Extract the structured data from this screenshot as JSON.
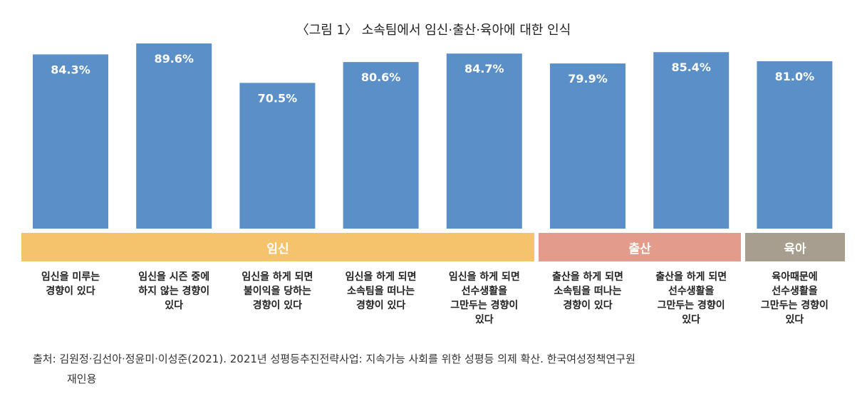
{
  "title": "〈그림 1〉 소속팀에서 임신·출산·육아에 대한 인식",
  "chart_data": {
    "type": "bar",
    "categories": [
      "임신을 미루는\n경향이 있다",
      "임신을 시즌 중에\n하지 않는 경향이\n있다",
      "임신을 하게 되면\n불이익을 당하는\n경향이 있다",
      "임신을 하게 되면\n소속팀을 떠나는\n경향이 있다",
      "임신을 하게 되면\n선수생활을\n그만두는 경향이\n있다",
      "출산을 하게 되면\n소속팀을 떠나는\n경향이 있다",
      "출산을 하게 되면\n선수생활을\n그만두는 경향이\n있다",
      "육아때문에\n선수생활을\n그만두는 경향이\n있다"
    ],
    "values": [
      84.3,
      89.6,
      70.5,
      80.6,
      84.7,
      79.9,
      85.4,
      81.0
    ],
    "value_labels": [
      "84.3%",
      "89.6%",
      "70.5%",
      "80.6%",
      "84.7%",
      "79.9%",
      "85.4%",
      "81.0%"
    ],
    "bar_color": "#5b8fc7",
    "groups": [
      {
        "label": "임신",
        "count": 5,
        "color": "#f5c36b"
      },
      {
        "label": "출산",
        "count": 2,
        "color": "#e39c8b"
      },
      {
        "label": "육아",
        "count": 1,
        "color": "#a89e8f"
      }
    ]
  },
  "source": {
    "line1": "출처: 김원정·김선아·정윤미·이성준(2021). 2021년 성평등추진전략사업: 지속가능 사회를 위한 성평등 의제 확산. 한국여성정책연구원",
    "line2": "재인용"
  }
}
